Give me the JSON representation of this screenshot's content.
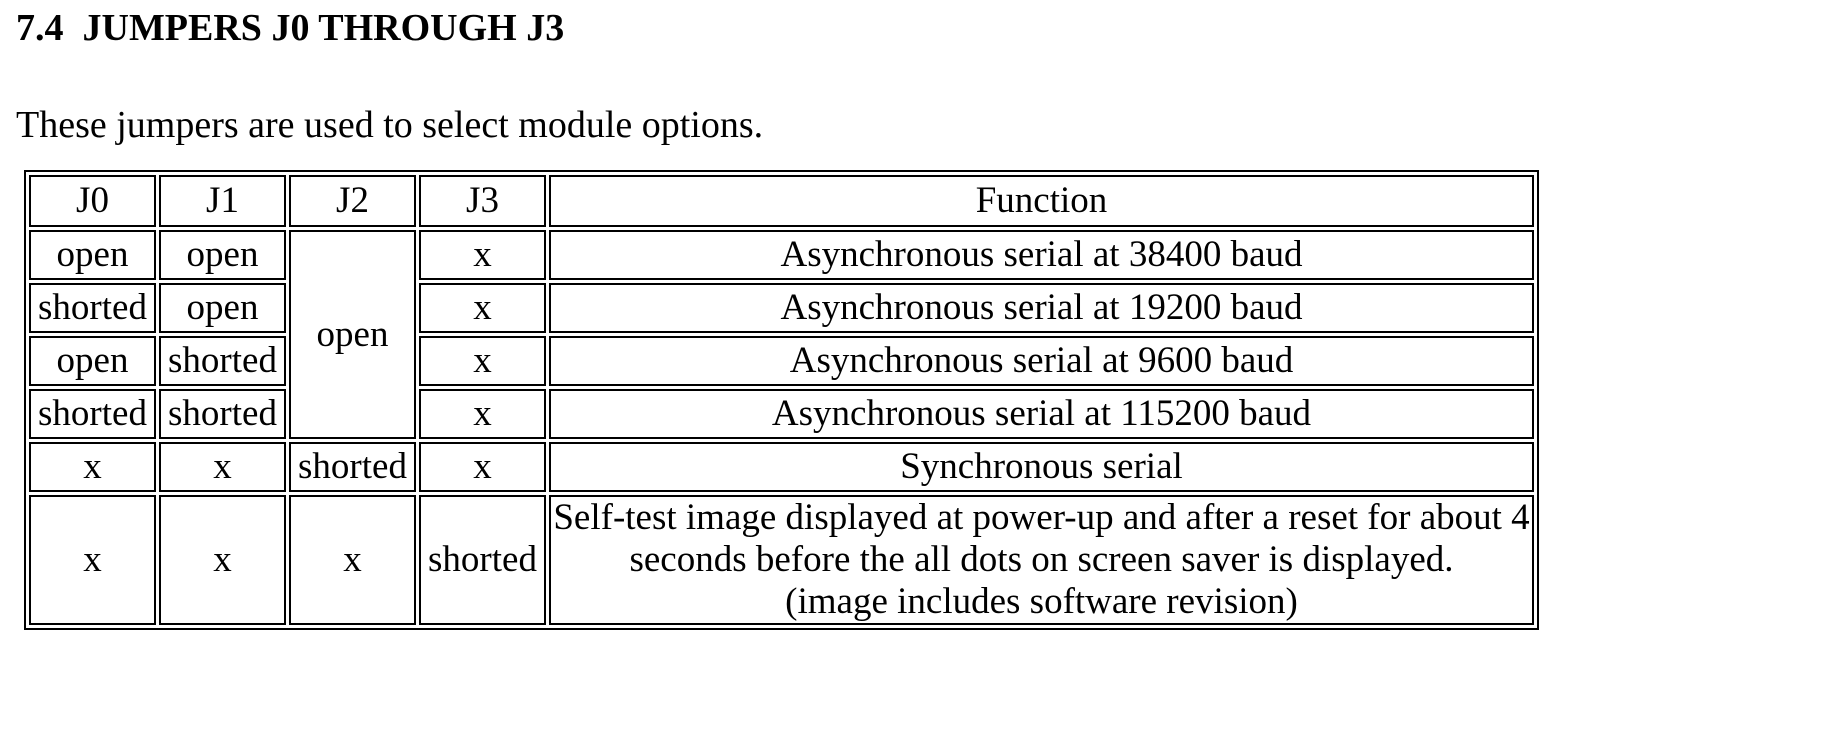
{
  "heading": {
    "number": "7.4",
    "title": "JUMPERS J0 THROUGH J3"
  },
  "intro": "These jumpers are used to select module options.",
  "table": {
    "headers": [
      "J0",
      "J1",
      "J2",
      "J3",
      "Function"
    ],
    "rows": [
      {
        "j0": "open",
        "j1": "open",
        "j3": "x",
        "function": "Asynchronous serial at 38400 baud"
      },
      {
        "j0": "shorted",
        "j1": "open",
        "j3": "x",
        "function": "Asynchronous serial at 19200 baud"
      },
      {
        "j0": "open",
        "j1": "shorted",
        "j3": "x",
        "function": "Asynchronous serial at 9600 baud"
      },
      {
        "j0": "shorted",
        "j1": "shorted",
        "j3": "x",
        "function": "Asynchronous serial at 115200 baud"
      },
      {
        "j0": "x",
        "j1": "x",
        "j2": "shorted",
        "j3": "x",
        "function": "Synchronous serial"
      },
      {
        "j0": "x",
        "j1": "x",
        "j2": "x",
        "j3": "shorted",
        "function_lines": [
          "Self-test image displayed at power-up and after a reset for about 4",
          "seconds before the all dots on screen saver is displayed.",
          "(image includes software revision)"
        ]
      }
    ],
    "merged_j2_async": "open"
  }
}
